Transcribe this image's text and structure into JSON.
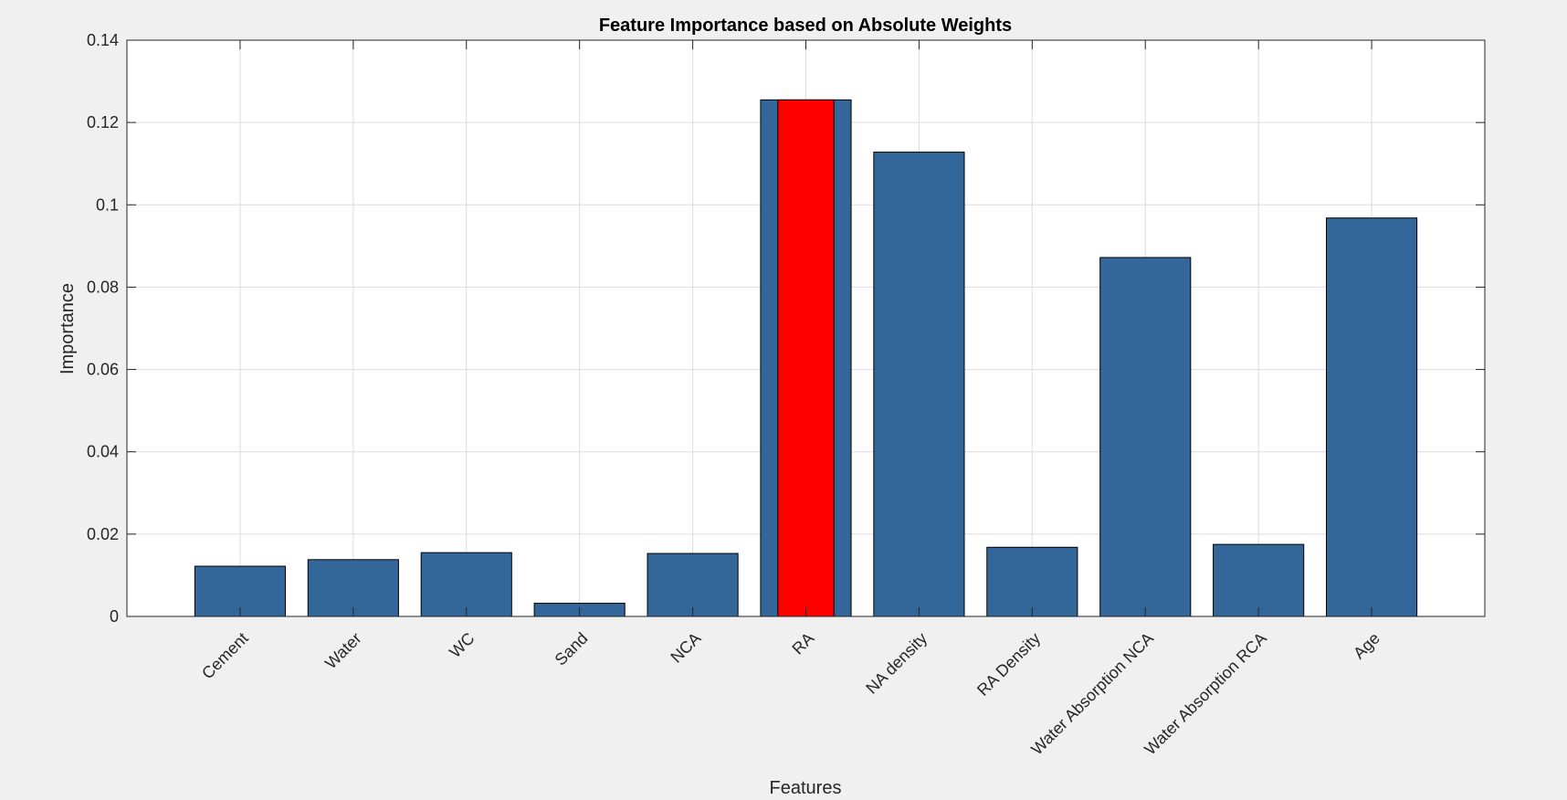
{
  "chart_data": {
    "type": "bar",
    "title": "Feature Importance based on Absolute Weights",
    "xlabel": "Features",
    "ylabel": "Importance",
    "categories": [
      "Cement",
      "Water",
      "WC",
      "Sand",
      "NCA",
      "RA",
      "NA density",
      "RA Density",
      "Water Absorption NCA",
      "Water Absorption RCA",
      "Age"
    ],
    "values": [
      0.0122,
      0.0138,
      0.0155,
      0.0032,
      0.0153,
      0.1255,
      0.1128,
      0.0168,
      0.0872,
      0.0175,
      0.0968
    ],
    "ylim": [
      0,
      0.14
    ],
    "yticks": [
      0,
      0.02,
      0.04,
      0.06,
      0.08,
      0.1,
      0.12,
      0.14
    ],
    "ytick_labels": [
      "0",
      "0.02",
      "0.04",
      "0.06",
      "0.08",
      "0.1",
      "0.12",
      "0.14"
    ],
    "xlim": [
      0,
      12
    ],
    "grid": true,
    "highlight_index": 5,
    "colors": {
      "bar": "#336699",
      "highlight": "#ff0000",
      "edge": "#000000",
      "grid": "#dcdcdc",
      "axes_bg": "#ffffff",
      "figure_bg": "#f0f0f0"
    }
  }
}
